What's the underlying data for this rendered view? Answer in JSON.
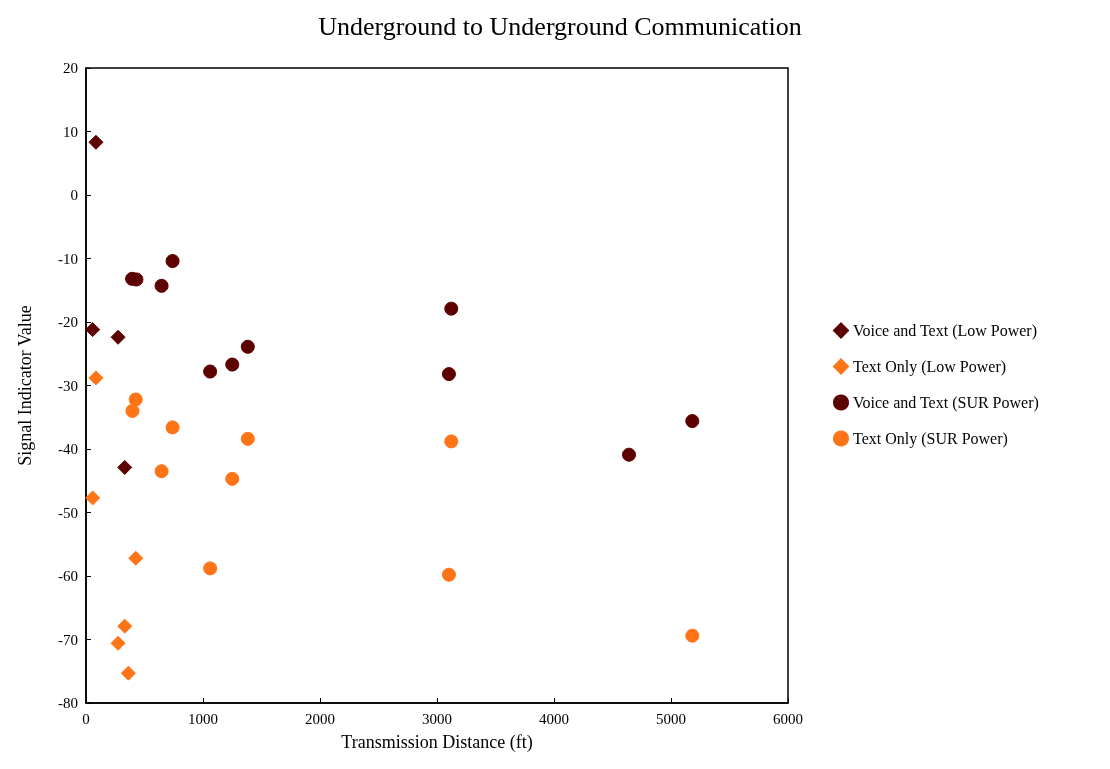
{
  "chart_data": {
    "type": "scatter",
    "title": "Underground to Underground Communication",
    "xlabel": "Transmission Distance (ft)",
    "ylabel": "Signal Indicator Value",
    "xlim": [
      0,
      6000
    ],
    "xticks": [
      0,
      1000,
      2000,
      3000,
      4000,
      5000,
      6000
    ],
    "ylim": [
      -80,
      20
    ],
    "yticks": [
      -80,
      -70,
      -60,
      -50,
      -40,
      -30,
      -20,
      -10,
      0,
      10,
      20
    ],
    "grid": false,
    "legend": "right",
    "series": [
      {
        "name": "Voice and Text (Low Power)",
        "color": "#5c0000",
        "marker": "diamond",
        "x": [
          85,
          57,
          274,
          331
        ],
        "values": [
          8.3,
          -21.2,
          -22.4,
          -42.9
        ]
      },
      {
        "name": "Text Only (Low Power)",
        "color": "#ff7417",
        "marker": "diamond",
        "x": [
          85,
          57,
          425,
          331,
          274,
          362
        ],
        "values": [
          -28.8,
          -47.7,
          -57.2,
          -67.9,
          -70.6,
          -75.3
        ]
      },
      {
        "name": "Voice and Text (SUR Power)",
        "color": "#5c0000",
        "marker": "circle",
        "x": [
          394,
          431,
          646,
          740,
          1061,
          1250,
          1383,
          3122,
          3102,
          4641,
          5182
        ],
        "values": [
          -13.2,
          -13.3,
          -14.3,
          -10.4,
          -27.8,
          -26.7,
          -23.9,
          -17.9,
          -28.2,
          -40.9,
          -35.6
        ]
      },
      {
        "name": "Text Only (SUR Power)",
        "color": "#ff7417",
        "marker": "circle",
        "x": [
          425,
          397,
          740,
          1383,
          646,
          1250,
          1061,
          3122,
          3102,
          5182
        ],
        "values": [
          -32.2,
          -34.0,
          -36.6,
          -38.4,
          -43.5,
          -44.7,
          -58.8,
          -38.8,
          -59.8,
          -69.4
        ]
      }
    ]
  }
}
